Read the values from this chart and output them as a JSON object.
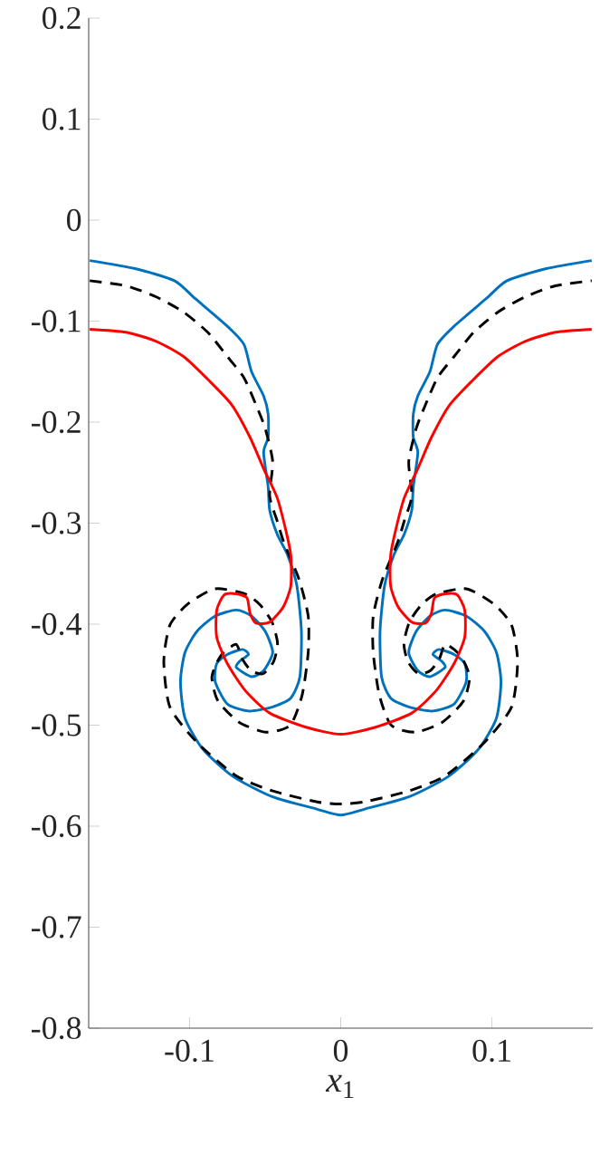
{
  "chart_data": {
    "type": "line",
    "xlabel": "*x*$_{1}$",
    "xlim": [
      -0.1667,
      0.1667
    ],
    "ylim": [
      -0.8,
      0.2
    ],
    "xticks": [
      -0.1,
      0,
      0.1
    ],
    "yticks": [
      -0.8,
      -0.7,
      -0.6,
      -0.5,
      -0.4,
      -0.3,
      -0.2,
      -0.1,
      0,
      0.1,
      0.2
    ],
    "grid": false,
    "series": [
      {
        "color": "#0072bd",
        "line_style": "solid",
        "x": [
          -0.166,
          -0.136,
          -0.11,
          -0.096,
          -0.075,
          -0.064,
          -0.059,
          -0.051,
          -0.048,
          -0.048,
          -0.051,
          -0.048,
          -0.047,
          -0.042,
          -0.035,
          -0.029,
          -0.026,
          -0.027,
          -0.033,
          -0.045,
          -0.061,
          -0.075,
          -0.083,
          -0.082,
          -0.075,
          -0.065,
          -0.061,
          -0.067,
          -0.069,
          -0.059,
          -0.051,
          -0.045,
          -0.05,
          -0.059,
          -0.069,
          -0.083,
          -0.095,
          -0.103,
          -0.106,
          -0.103,
          -0.091,
          -0.071,
          -0.045,
          -0.016,
          0,
          0.016,
          0.045,
          0.071,
          0.091,
          0.103,
          0.106,
          0.103,
          0.095,
          0.083,
          0.069,
          0.059,
          0.05,
          0.045,
          0.051,
          0.059,
          0.069,
          0.067,
          0.061,
          0.065,
          0.075,
          0.082,
          0.083,
          0.075,
          0.061,
          0.045,
          0.033,
          0.027,
          0.026,
          0.029,
          0.035,
          0.042,
          0.047,
          0.048,
          0.051,
          0.048,
          0.048,
          0.051,
          0.059,
          0.064,
          0.075,
          0.096,
          0.11,
          0.136,
          0.166
        ],
        "values": [
          -0.04,
          -0.048,
          -0.06,
          -0.078,
          -0.105,
          -0.123,
          -0.15,
          -0.174,
          -0.192,
          -0.215,
          -0.23,
          -0.264,
          -0.287,
          -0.311,
          -0.332,
          -0.362,
          -0.407,
          -0.452,
          -0.473,
          -0.482,
          -0.486,
          -0.479,
          -0.457,
          -0.439,
          -0.43,
          -0.425,
          -0.43,
          -0.437,
          -0.443,
          -0.452,
          -0.446,
          -0.428,
          -0.407,
          -0.392,
          -0.386,
          -0.392,
          -0.407,
          -0.428,
          -0.457,
          -0.493,
          -0.524,
          -0.551,
          -0.571,
          -0.583,
          -0.589,
          -0.583,
          -0.571,
          -0.551,
          -0.524,
          -0.493,
          -0.457,
          -0.428,
          -0.407,
          -0.392,
          -0.386,
          -0.392,
          -0.407,
          -0.428,
          -0.446,
          -0.452,
          -0.443,
          -0.437,
          -0.43,
          -0.425,
          -0.43,
          -0.439,
          -0.457,
          -0.479,
          -0.486,
          -0.482,
          -0.473,
          -0.452,
          -0.407,
          -0.362,
          -0.332,
          -0.311,
          -0.287,
          -0.264,
          -0.23,
          -0.215,
          -0.192,
          -0.174,
          -0.15,
          -0.123,
          -0.105,
          -0.078,
          -0.06,
          -0.048,
          -0.04
        ]
      },
      {
        "color": "#000000",
        "line_style": "dashed",
        "x": [
          -0.166,
          -0.142,
          -0.122,
          -0.104,
          -0.088,
          -0.075,
          -0.064,
          -0.056,
          -0.05,
          -0.045,
          -0.047,
          -0.042,
          -0.0374,
          -0.0275,
          -0.0215,
          -0.0215,
          -0.0255,
          -0.0334,
          -0.0494,
          -0.0673,
          -0.0812,
          -0.0852,
          -0.0792,
          -0.0693,
          -0.0653,
          -0.0593,
          -0.0513,
          -0.0444,
          -0.0418,
          -0.0454,
          -0.0533,
          -0.0633,
          -0.0832,
          -0.1011,
          -0.113,
          -0.117,
          -0.113,
          -0.0951,
          -0.0693,
          -0.0454,
          -0.0155,
          0,
          0.0155,
          0.0454,
          0.0693,
          0.0951,
          0.113,
          0.117,
          0.113,
          0.1011,
          0.0832,
          0.0633,
          0.0533,
          0.0454,
          0.0418,
          0.0444,
          0.0513,
          0.0593,
          0.0653,
          0.0693,
          0.0792,
          0.0852,
          0.0812,
          0.0673,
          0.0494,
          0.0334,
          0.0255,
          0.0215,
          0.0215,
          0.0275,
          0.0374,
          0.042,
          0.047,
          0.045,
          0.05,
          0.056,
          0.064,
          0.075,
          0.088,
          0.104,
          0.122,
          0.142,
          0.166
        ],
        "values": [
          -0.06,
          -0.065,
          -0.076,
          -0.091,
          -0.111,
          -0.135,
          -0.156,
          -0.183,
          -0.206,
          -0.239,
          -0.273,
          -0.298,
          -0.32,
          -0.356,
          -0.392,
          -0.428,
          -0.47,
          -0.5,
          -0.507,
          -0.497,
          -0.476,
          -0.452,
          -0.431,
          -0.42,
          -0.434,
          -0.446,
          -0.449,
          -0.437,
          -0.419,
          -0.398,
          -0.381,
          -0.37,
          -0.365,
          -0.38,
          -0.401,
          -0.437,
          -0.482,
          -0.517,
          -0.55,
          -0.565,
          -0.576,
          -0.578,
          -0.576,
          -0.565,
          -0.55,
          -0.517,
          -0.482,
          -0.437,
          -0.401,
          -0.38,
          -0.365,
          -0.37,
          -0.381,
          -0.398,
          -0.419,
          -0.437,
          -0.449,
          -0.446,
          -0.434,
          -0.42,
          -0.431,
          -0.452,
          -0.476,
          -0.497,
          -0.507,
          -0.5,
          -0.47,
          -0.428,
          -0.392,
          -0.356,
          -0.32,
          -0.298,
          -0.273,
          -0.239,
          -0.206,
          -0.183,
          -0.156,
          -0.135,
          -0.111,
          -0.091,
          -0.076,
          -0.065,
          -0.06
        ]
      },
      {
        "color": "#ff0000",
        "line_style": "solid",
        "x": [
          -0.166,
          -0.142,
          -0.122,
          -0.104,
          -0.087,
          -0.072,
          -0.06,
          -0.051,
          -0.042,
          -0.036,
          -0.033,
          -0.033,
          -0.038,
          -0.047,
          -0.056,
          -0.06,
          -0.062,
          -0.069,
          -0.077,
          -0.082,
          -0.082,
          -0.075,
          -0.063,
          -0.047,
          -0.023,
          0,
          0.023,
          0.047,
          0.063,
          0.075,
          0.082,
          0.082,
          0.077,
          0.069,
          0.062,
          0.06,
          0.056,
          0.047,
          0.038,
          0.033,
          0.033,
          0.036,
          0.042,
          0.051,
          0.06,
          0.072,
          0.087,
          0.104,
          0.122,
          0.142,
          0.166
        ],
        "values": [
          -0.108,
          -0.111,
          -0.12,
          -0.135,
          -0.159,
          -0.183,
          -0.215,
          -0.246,
          -0.275,
          -0.309,
          -0.332,
          -0.362,
          -0.383,
          -0.398,
          -0.399,
          -0.389,
          -0.374,
          -0.37,
          -0.371,
          -0.386,
          -0.413,
          -0.439,
          -0.466,
          -0.488,
          -0.502,
          -0.509,
          -0.502,
          -0.488,
          -0.466,
          -0.439,
          -0.413,
          -0.386,
          -0.371,
          -0.37,
          -0.374,
          -0.389,
          -0.399,
          -0.398,
          -0.383,
          -0.362,
          -0.332,
          -0.309,
          -0.275,
          -0.246,
          -0.215,
          -0.183,
          -0.159,
          -0.135,
          -0.12,
          -0.111,
          -0.108
        ]
      }
    ]
  }
}
